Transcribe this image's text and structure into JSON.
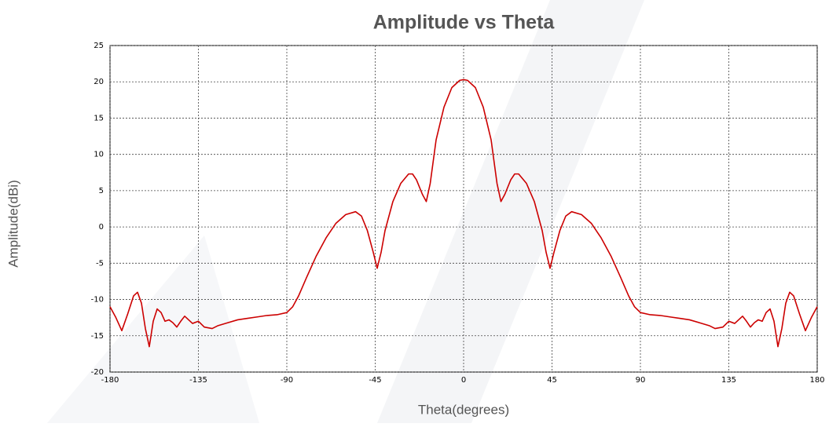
{
  "chart_data": {
    "type": "line",
    "title": "Amplitude vs Theta",
    "x_label": "Theta(degrees)",
    "y_label": "Amplitude(dBi)",
    "x": [
      -180,
      -177,
      -174,
      -171,
      -168,
      -166,
      -164,
      -162,
      -160,
      -158,
      -156,
      -154,
      -152,
      -150,
      -148,
      -146,
      -144,
      -142,
      -140,
      -138,
      -135,
      -132,
      -128,
      -125,
      -120,
      -115,
      -110,
      -105,
      -100,
      -95,
      -90,
      -87,
      -84,
      -80,
      -75,
      -70,
      -65,
      -60,
      -55,
      -52,
      -49,
      -46,
      -44,
      -42,
      -40,
      -36,
      -32,
      -28,
      -26,
      -24,
      -21,
      -19,
      -17,
      -14,
      -10,
      -6,
      -2,
      0,
      2,
      6,
      10,
      14,
      17,
      19,
      21,
      24,
      26,
      28,
      32,
      36,
      40,
      42,
      44,
      46,
      49,
      52,
      55,
      60,
      65,
      70,
      75,
      80,
      84,
      87,
      90,
      95,
      100,
      105,
      110,
      115,
      120,
      125,
      128,
      132,
      135,
      138,
      140,
      142,
      144,
      146,
      148,
      150,
      152,
      154,
      156,
      158,
      160,
      162,
      164,
      166,
      168,
      171,
      174,
      177,
      180
    ],
    "series": [
      {
        "name": "Amplitude",
        "color": "#cc0000",
        "values": [
          -11,
          -12.5,
          -14.3,
          -12,
          -9.5,
          -9,
          -10.5,
          -14,
          -16.5,
          -13,
          -11.3,
          -11.8,
          -13,
          -12.8,
          -13.2,
          -13.8,
          -13,
          -12.3,
          -12.8,
          -13.3,
          -13,
          -13.8,
          -14,
          -13.6,
          -13.2,
          -12.8,
          -12.6,
          -12.4,
          -12.2,
          -12.1,
          -11.8,
          -11,
          -9.5,
          -7,
          -4,
          -1.5,
          0.5,
          1.7,
          2.1,
          1.5,
          -0.5,
          -3.5,
          -5.7,
          -3.5,
          -0.5,
          3.5,
          6,
          7.3,
          7.3,
          6.5,
          4.5,
          3.5,
          6,
          12,
          16.5,
          19.2,
          20.2,
          20.3,
          20.2,
          19.2,
          16.5,
          12,
          6,
          3.5,
          4.5,
          6.5,
          7.3,
          7.3,
          6,
          3.5,
          -0.5,
          -3.5,
          -5.7,
          -3.5,
          -0.5,
          1.5,
          2.1,
          1.7,
          0.5,
          -1.5,
          -4,
          -7,
          -9.5,
          -11,
          -11.8,
          -12.1,
          -12.2,
          -12.4,
          -12.6,
          -12.8,
          -13.2,
          -13.6,
          -14,
          -13.8,
          -13,
          -13.3,
          -12.8,
          -12.3,
          -13,
          -13.8,
          -13.2,
          -12.8,
          -13,
          -11.8,
          -11.3,
          -13,
          -16.5,
          -14,
          -10.5,
          -9,
          -9.5,
          -12,
          -14.3,
          -12.5,
          -11
        ]
      }
    ],
    "xlim": [
      -180,
      180
    ],
    "xticks": [
      -180,
      -135,
      -90,
      -45,
      0,
      45,
      90,
      135,
      180
    ],
    "ylim": [
      -20,
      25
    ],
    "yticks": [
      -20,
      -15,
      -10,
      -5,
      0,
      5,
      10,
      15,
      20,
      25
    ],
    "grid": true
  }
}
